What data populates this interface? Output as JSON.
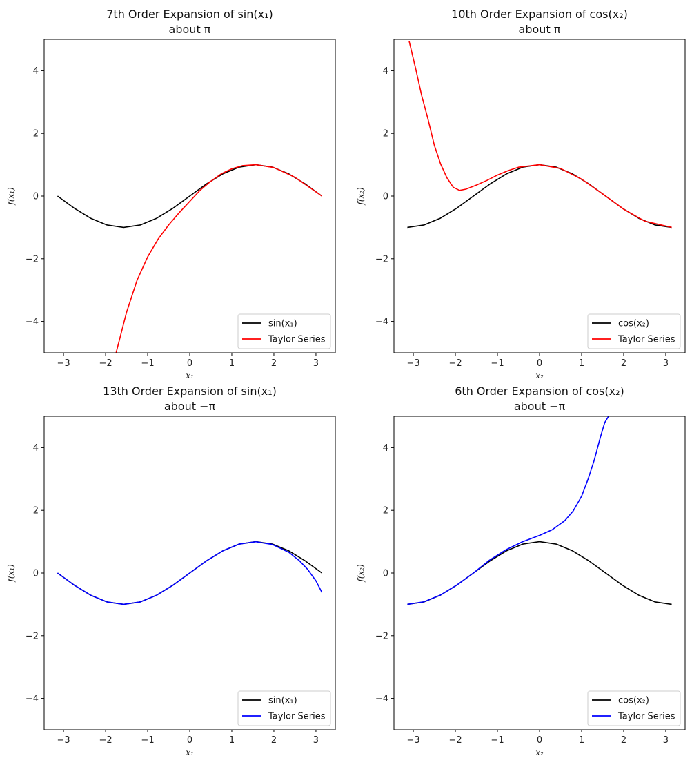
{
  "chart_data": [
    {
      "type": "line",
      "title": [
        "7th Order Expansion of sin(x₁)",
        "about π"
      ],
      "xlabel": "x₁",
      "ylabel": "f(x₁)",
      "xlim": [
        -3.46,
        3.46
      ],
      "ylim": [
        -5,
        5
      ],
      "xticks": [
        -3,
        -2,
        -1,
        0,
        1,
        2,
        3
      ],
      "yticks": [
        -4,
        -2,
        0,
        2,
        4
      ],
      "legend_position": "lower right",
      "series": [
        {
          "name": "sin(x₁)",
          "color": "#000000",
          "x": [
            -3.1416,
            -2.7489,
            -2.3562,
            -1.9635,
            -1.5708,
            -1.1781,
            -0.7854,
            -0.3927,
            0.0,
            0.3927,
            0.7854,
            1.1781,
            1.5708,
            1.9635,
            2.3562,
            2.7489,
            3.1416
          ],
          "y": [
            0.0,
            -0.383,
            -0.707,
            -0.924,
            -1.0,
            -0.924,
            -0.707,
            -0.383,
            0.0,
            0.383,
            0.707,
            0.924,
            1.0,
            0.924,
            0.707,
            0.383,
            0.0
          ]
        },
        {
          "name": "Taylor Series",
          "color": "#ff0000",
          "x": [
            -1.75,
            -1.5,
            -1.25,
            -1.0,
            -0.75,
            -0.5,
            -0.25,
            0.0,
            0.25,
            0.5,
            0.75,
            1.0,
            1.25,
            1.5708,
            2.0,
            2.5,
            3.1416
          ],
          "y": [
            -5.0,
            -3.7,
            -2.68,
            -1.94,
            -1.37,
            -0.92,
            -0.53,
            -0.17,
            0.19,
            0.47,
            0.71,
            0.87,
            0.97,
            1.0,
            0.91,
            0.6,
            0.0
          ]
        }
      ]
    },
    {
      "type": "line",
      "title": [
        "10th Order Expansion of cos(x₂)",
        "about π"
      ],
      "xlabel": "x₂",
      "ylabel": "f(x₂)",
      "xlim": [
        -3.46,
        3.46
      ],
      "ylim": [
        -5,
        5
      ],
      "xticks": [
        -3,
        -2,
        -1,
        0,
        1,
        2,
        3
      ],
      "yticks": [
        -4,
        -2,
        0,
        2,
        4
      ],
      "legend_position": "lower right",
      "series": [
        {
          "name": "cos(x₂)",
          "color": "#000000",
          "x": [
            -3.1416,
            -2.7489,
            -2.3562,
            -1.9635,
            -1.5708,
            -1.1781,
            -0.7854,
            -0.3927,
            0.0,
            0.3927,
            0.7854,
            1.1781,
            1.5708,
            1.9635,
            2.3562,
            2.7489,
            3.1416
          ],
          "y": [
            -1.0,
            -0.924,
            -0.707,
            -0.383,
            0.0,
            0.383,
            0.707,
            0.924,
            1.0,
            0.924,
            0.707,
            0.383,
            0.0,
            -0.383,
            -0.707,
            -0.924,
            -1.0
          ]
        },
        {
          "name": "Taylor Series",
          "color": "#ff0000",
          "x": [
            -3.1,
            -2.95,
            -2.8,
            -2.65,
            -2.5,
            -2.35,
            -2.2,
            -2.05,
            -1.9,
            -1.75,
            -1.5,
            -1.25,
            -1.0,
            -0.75,
            -0.5,
            0.0,
            0.5,
            1.0,
            1.5,
            2.0,
            2.5,
            3.1416
          ],
          "y": [
            4.95,
            4.1,
            3.2,
            2.45,
            1.62,
            1.02,
            0.58,
            0.28,
            0.18,
            0.22,
            0.35,
            0.5,
            0.67,
            0.81,
            0.92,
            1.0,
            0.88,
            0.54,
            0.07,
            -0.42,
            -0.8,
            -1.0
          ]
        }
      ]
    },
    {
      "type": "line",
      "title": [
        "13th Order Expansion of sin(x₁)",
        "about −π"
      ],
      "xlabel": "x₁",
      "ylabel": "f(x₁)",
      "xlim": [
        -3.46,
        3.46
      ],
      "ylim": [
        -5,
        5
      ],
      "xticks": [
        -3,
        -2,
        -1,
        0,
        1,
        2,
        3
      ],
      "yticks": [
        -4,
        -2,
        0,
        2,
        4
      ],
      "legend_position": "lower right",
      "series": [
        {
          "name": "sin(x₁)",
          "color": "#000000",
          "x": [
            -3.1416,
            -2.7489,
            -2.3562,
            -1.9635,
            -1.5708,
            -1.1781,
            -0.7854,
            -0.3927,
            0.0,
            0.3927,
            0.7854,
            1.1781,
            1.5708,
            1.9635,
            2.3562,
            2.7489,
            3.1416
          ],
          "y": [
            0.0,
            -0.383,
            -0.707,
            -0.924,
            -1.0,
            -0.924,
            -0.707,
            -0.383,
            0.0,
            0.383,
            0.707,
            0.924,
            1.0,
            0.924,
            0.707,
            0.383,
            0.0
          ]
        },
        {
          "name": "Taylor Series",
          "color": "#0000ff",
          "x": [
            -3.1416,
            -2.7489,
            -2.3562,
            -1.9635,
            -1.5708,
            -1.1781,
            -0.7854,
            -0.3927,
            0.0,
            0.3927,
            0.7854,
            1.1781,
            1.5708,
            1.9635,
            2.3562,
            2.6,
            2.8,
            3.0,
            3.1416
          ],
          "y": [
            0.0,
            -0.383,
            -0.707,
            -0.924,
            -1.0,
            -0.924,
            -0.707,
            -0.383,
            0.0,
            0.383,
            0.707,
            0.924,
            0.998,
            0.91,
            0.66,
            0.4,
            0.12,
            -0.25,
            -0.62
          ]
        }
      ]
    },
    {
      "type": "line",
      "title": [
        "6th Order Expansion of cos(x₂)",
        "about −π"
      ],
      "xlabel": "x₂",
      "ylabel": "f(x₂)",
      "xlim": [
        -3.46,
        3.46
      ],
      "ylim": [
        -5,
        5
      ],
      "xticks": [
        -3,
        -2,
        -1,
        0,
        1,
        2,
        3
      ],
      "yticks": [
        -4,
        -2,
        0,
        2,
        4
      ],
      "legend_position": "lower right",
      "series": [
        {
          "name": "cos(x₂)",
          "color": "#000000",
          "x": [
            -3.1416,
            -2.7489,
            -2.3562,
            -1.9635,
            -1.5708,
            -1.1781,
            -0.7854,
            -0.3927,
            0.0,
            0.3927,
            0.7854,
            1.1781,
            1.5708,
            1.9635,
            2.3562,
            2.7489,
            3.1416
          ],
          "y": [
            -1.0,
            -0.924,
            -0.707,
            -0.383,
            0.0,
            0.383,
            0.707,
            0.924,
            1.0,
            0.924,
            0.707,
            0.383,
            0.0,
            -0.383,
            -0.707,
            -0.924,
            -1.0
          ]
        },
        {
          "name": "Taylor Series",
          "color": "#0000ff",
          "x": [
            -3.1416,
            -2.75,
            -2.35,
            -1.95,
            -1.5708,
            -1.2,
            -0.8,
            -0.4,
            0.0,
            0.3,
            0.6,
            0.8,
            1.0,
            1.15,
            1.3,
            1.45,
            1.55,
            1.64
          ],
          "y": [
            -1.0,
            -0.92,
            -0.7,
            -0.37,
            0.0,
            0.4,
            0.74,
            1.0,
            1.2,
            1.38,
            1.67,
            1.98,
            2.45,
            2.98,
            3.6,
            4.35,
            4.8,
            5.0
          ]
        }
      ]
    }
  ]
}
